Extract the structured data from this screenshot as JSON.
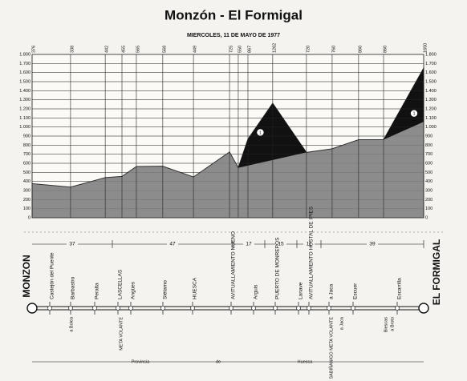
{
  "chart_data": {
    "type": "area",
    "title": "Monzón - El Formigal",
    "subtitle": "MIERCOLES, 11 DE MAYO DE 1977",
    "x": [
      0,
      16.3,
      31.0,
      38.1,
      44.2,
      55.4,
      68.4,
      83.7,
      87.4,
      91.5,
      102.0,
      116.3,
      127.2,
      138.4,
      149.0,
      166.0
    ],
    "values": [
      376,
      338,
      442,
      455,
      565,
      568,
      449,
      725,
      550,
      867,
      1262,
      720,
      760,
      860,
      860,
      1650
    ],
    "xlim": [
      0,
      166
    ],
    "ylim": [
      0,
      1800
    ],
    "yticks": [
      0,
      100,
      200,
      300,
      400,
      500,
      600,
      700,
      800,
      900,
      {
        "value": 1000,
        "label": "1.000"
      },
      {
        "value": 1100,
        "label": "1.100"
      },
      {
        "value": 1200,
        "label": "1.200"
      },
      {
        "value": 1300,
        "label": "1.300"
      },
      {
        "value": 1400,
        "label": "1.400"
      },
      {
        "value": 1500,
        "label": "1.500"
      },
      {
        "value": 1600,
        "label": "1.600"
      },
      {
        "value": 1700,
        "label": "1.700"
      },
      {
        "value": 1800,
        "label": "1.800"
      }
    ],
    "grid": true,
    "color": "#8c8c8c",
    "annotations": [
      "1",
      "1"
    ]
  },
  "route": {
    "start": "MONZON",
    "end": "EL FORMIGAL",
    "segments": [
      37,
      47,
      17,
      15,
      11,
      39
    ],
    "towns_above": [
      "Castejón del Puente",
      "Barbastro",
      "Peralta",
      "LASCELLAS",
      "Angües",
      "Siétamo",
      "HUESCA",
      "AVITUALLAMIENTO NUENO",
      "Arguis",
      "PUERTO DE MONREPOS",
      "Lanave",
      "AVITUALLAMIENTO HOSTAL DE IPIES",
      "a Jaca",
      "Escuer",
      "Escarrilla"
    ],
    "towns_below": [
      "a Bolea",
      "META VOLANTE",
      "SABIÑANIGO META VOLANTE",
      "a Jaca",
      "Biescas",
      "a Broto"
    ],
    "province": [
      "Provincia",
      "de",
      "Huesca"
    ]
  }
}
